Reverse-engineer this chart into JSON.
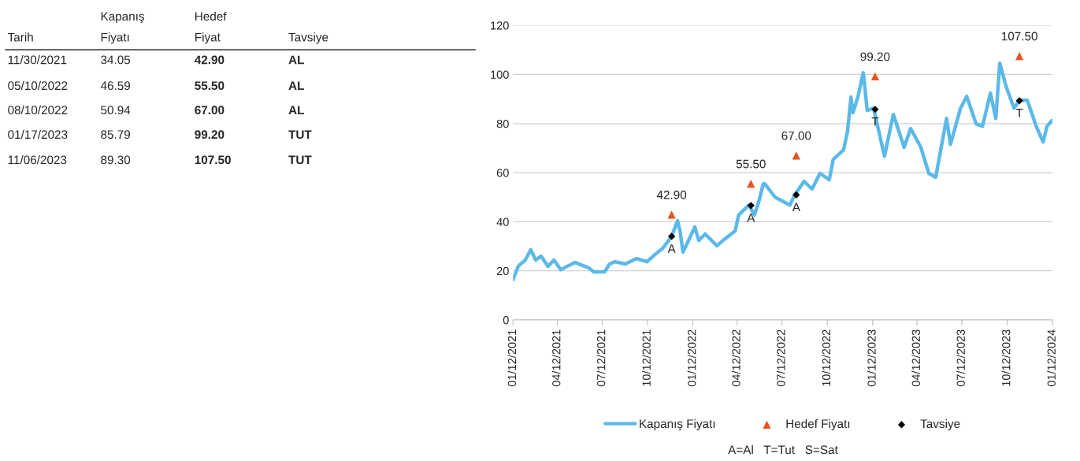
{
  "chart_data": {
    "type": "line",
    "x": [
      "2021-01-12",
      "2021-01-23",
      "2021-02-06",
      "2021-02-17",
      "2021-02-27",
      "2021-03-10",
      "2021-03-24",
      "2021-04-05",
      "2021-04-19",
      "2021-05-18",
      "2021-06-15",
      "2021-06-25",
      "2021-07-17",
      "2021-07-27",
      "2021-08-07",
      "2021-08-28",
      "2021-09-20",
      "2021-10-11",
      "2021-10-27",
      "2021-11-12",
      "2021-11-30",
      "2021-12-12",
      "2021-12-17",
      "2021-12-23",
      "2022-01-02",
      "2022-01-16",
      "2022-01-24",
      "2022-02-06",
      "2022-03-02",
      "2022-03-18",
      "2022-04-08",
      "2022-04-15",
      "2022-05-06",
      "2022-05-17",
      "2022-05-27",
      "2022-06-04",
      "2022-06-07",
      "2022-06-28",
      "2022-07-28",
      "2022-08-07",
      "2022-08-26",
      "2022-09-11",
      "2022-09-27",
      "2022-10-16",
      "2022-10-24",
      "2022-11-14",
      "2022-11-22",
      "2022-11-29",
      "2022-12-03",
      "2022-12-13",
      "2022-12-24",
      "2023-01-01",
      "2023-01-14",
      "2023-02-05",
      "2023-02-23",
      "2023-03-17",
      "2023-03-30",
      "2023-04-20",
      "2023-05-06",
      "2023-05-20",
      "2023-06-11",
      "2023-06-19",
      "2023-07-09",
      "2023-07-22",
      "2023-08-10",
      "2023-08-23",
      "2023-09-08",
      "2023-09-19",
      "2023-09-27",
      "2023-10-10",
      "2023-10-26",
      "2023-11-06",
      "2023-11-22",
      "2023-12-10",
      "2023-12-24",
      "2024-01-01",
      "2024-01-11"
    ],
    "series": [
      {
        "name": "Kapanış Fiyatı",
        "color": "#5bb9e8",
        "marker": "none",
        "values": [
          16.4,
          22,
          24.4,
          28.6,
          24.4,
          26,
          21.8,
          24.4,
          20.5,
          23.4,
          21.2,
          19.6,
          19.6,
          22.8,
          23.7,
          22.8,
          25,
          23.7,
          26.6,
          29.2,
          34,
          40.4,
          36.3,
          27.6,
          31.8,
          37.9,
          32.4,
          35,
          30.2,
          33,
          36.3,
          42.7,
          46.8,
          42.7,
          49,
          55.5,
          55.5,
          50,
          46.8,
          51,
          56.5,
          53.3,
          59.7,
          57.1,
          65.4,
          69.3,
          76.7,
          90.8,
          84.4,
          90.8,
          100.7,
          85.3,
          86.3,
          66.7,
          83.7,
          70.3,
          78,
          70.3,
          59.7,
          58.1,
          82.1,
          71.5,
          86,
          91.1,
          79.9,
          78.9,
          92.4,
          82.1,
          104.6,
          95,
          86.3,
          89.5,
          89.5,
          78.9,
          72.5,
          78.9,
          81.2
        ]
      },
      {
        "name": "Hedef Fiyatı",
        "type": "scatter",
        "color": "#e8541e",
        "marker": "triangle",
        "value_labels": [
          "42.90",
          "55.50",
          "67.00",
          "99.20",
          "107.50"
        ],
        "x": [
          "2021-11-30",
          "2022-05-10",
          "2022-08-10",
          "2023-01-17",
          "2023-11-06"
        ],
        "values": [
          42.9,
          55.5,
          67.0,
          99.2,
          107.5
        ]
      },
      {
        "name": "Tavsiye",
        "type": "scatter",
        "color": "#000000",
        "marker": "diamond",
        "x": [
          "2021-11-30",
          "2022-05-10",
          "2022-08-10",
          "2023-01-17",
          "2023-11-06"
        ],
        "values": [
          34.05,
          46.59,
          50.94,
          85.79,
          89.3
        ],
        "value_labels": [
          "A",
          "A",
          "A",
          "T",
          "T"
        ]
      }
    ],
    "xlim": [
      "2021-01-12",
      "2024-01-12"
    ],
    "xticks": [
      {
        "value": "2021-01-12",
        "label": "01/12/2021"
      },
      {
        "value": "2021-04-12",
        "label": "04/12/2021"
      },
      {
        "value": "2021-07-12",
        "label": "07/12/2021"
      },
      {
        "value": "2021-10-12",
        "label": "10/12/2021"
      },
      {
        "value": "2022-01-12",
        "label": "01/12/2022"
      },
      {
        "value": "2022-04-12",
        "label": "04/12/2022"
      },
      {
        "value": "2022-07-12",
        "label": "07/12/2022"
      },
      {
        "value": "2022-10-12",
        "label": "10/12/2022"
      },
      {
        "value": "2023-01-12",
        "label": "01/12/2023"
      },
      {
        "value": "2023-04-12",
        "label": "04/12/2023"
      },
      {
        "value": "2023-07-12",
        "label": "07/12/2023"
      },
      {
        "value": "2023-10-12",
        "label": "10/12/2023"
      },
      {
        "value": "2024-01-12",
        "label": "01/12/2024"
      }
    ],
    "ylim": [
      0,
      120
    ],
    "yticks": [
      0,
      20,
      40,
      60,
      80,
      100,
      120
    ],
    "grid": "y",
    "legend": "bottom",
    "annotations": [
      "Tarih",
      "Kapanış\nFiyatı",
      "Hedef\nFiyat",
      "Tavsiye",
      "11/30/2021",
      "34.05",
      "42.90",
      "AL",
      "05/10/2022",
      "46.59",
      "55.50",
      "AL",
      "08/10/2022",
      "50.94",
      "67.00",
      "AL",
      "01/17/2023",
      "85.79",
      "99.20",
      "TUT",
      "11/06/2023",
      "89.30",
      "107.50",
      "TUT",
      "A=Al   T=Tut   S=Sat"
    ]
  }
}
